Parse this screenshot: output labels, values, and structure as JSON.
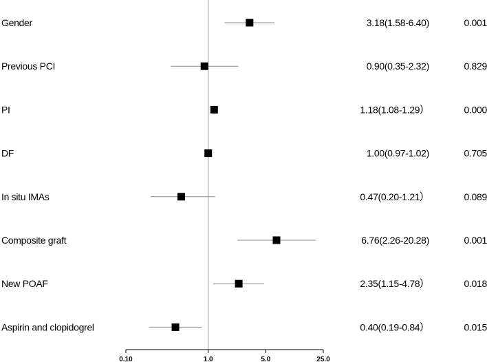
{
  "chart_data": {
    "type": "forest",
    "scale": "log",
    "reference_value": 1.0,
    "xlim": [
      0.1,
      25.0
    ],
    "ticks": [
      {
        "value": 0.1,
        "label": "0.10"
      },
      {
        "value": 1.0,
        "label": "1.0"
      },
      {
        "value": 5.0,
        "label": "5.0"
      },
      {
        "value": 25.0,
        "label": "25.0"
      }
    ],
    "rows": [
      {
        "label": "Gender",
        "or": 3.18,
        "lo": 1.58,
        "hi": 6.4,
        "ci_text": "3.18(1.58-6.40)",
        "p": "0.001"
      },
      {
        "label": "Previous PCI",
        "or": 0.9,
        "lo": 0.35,
        "hi": 2.32,
        "ci_text": "0.90(0.35-2.32)",
        "p": "0.829"
      },
      {
        "label": "PI",
        "or": 1.18,
        "lo": 1.08,
        "hi": 1.29,
        "ci_text": "1.18(1.08-1.29）",
        "p": "0.000"
      },
      {
        "label": "DF",
        "or": 1.0,
        "lo": 0.97,
        "hi": 1.02,
        "ci_text": "1.00(0.97-1.02)",
        "p": "0.705"
      },
      {
        "label": "In situ IMAs",
        "or": 0.47,
        "lo": 0.2,
        "hi": 1.21,
        "ci_text": "0.47(0.20-1.21）",
        "p": "0.089"
      },
      {
        "label": "Composite graft",
        "or": 6.76,
        "lo": 2.26,
        "hi": 20.28,
        "ci_text": "6.76(2.26-20.28)",
        "p": "0.001"
      },
      {
        "label": "New POAF",
        "or": 2.35,
        "lo": 1.15,
        "hi": 4.78,
        "ci_text": "2.35(1.15-4.78）",
        "p": "0.018"
      },
      {
        "label": "Aspirin and clopidogrel",
        "or": 0.4,
        "lo": 0.19,
        "hi": 0.84,
        "ci_text": "0.40(0.19-0.84）",
        "p": "0.015"
      }
    ]
  }
}
